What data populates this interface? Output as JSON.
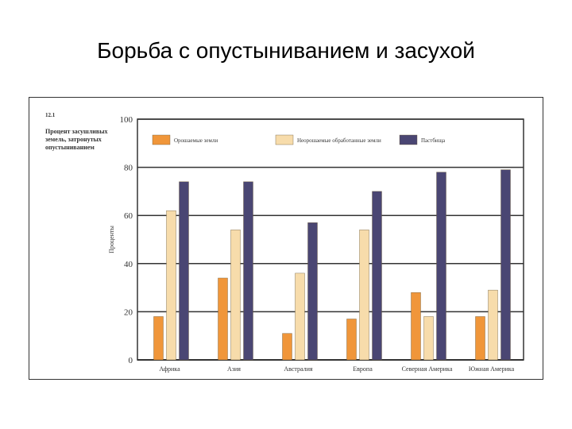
{
  "slide": {
    "title": "Борьба с опустыниванием и засухой"
  },
  "figure": {
    "number": "12.1",
    "side_caption": "Процент засушливых земель, затронутых опустыниванием"
  },
  "colors": {
    "orange": "#f0963a",
    "cream": "#f7dcab",
    "navy": "#4a4673",
    "grid": "#333333"
  },
  "chart_data": {
    "type": "bar",
    "categories": [
      "Африка",
      "Азия",
      "Австралия",
      "Европа",
      "Северная Америка",
      "Южная Америка"
    ],
    "series": [
      {
        "name": "Орошаемые земли",
        "values": [
          18,
          34,
          11,
          17,
          28,
          18
        ],
        "color": "#f0963a"
      },
      {
        "name": "Неорошаемые обработанные земли",
        "values": [
          62,
          54,
          36,
          54,
          18,
          29
        ],
        "color": "#f7dcab"
      },
      {
        "name": "Пастбища",
        "values": [
          74,
          74,
          57,
          70,
          78,
          79
        ],
        "color": "#4a4673"
      }
    ],
    "ylabel": "Проценты",
    "ylim": [
      0,
      100
    ],
    "yticks": [
      0,
      20,
      40,
      60,
      80,
      100
    ],
    "grid": true,
    "legend_position": "top-inside"
  }
}
